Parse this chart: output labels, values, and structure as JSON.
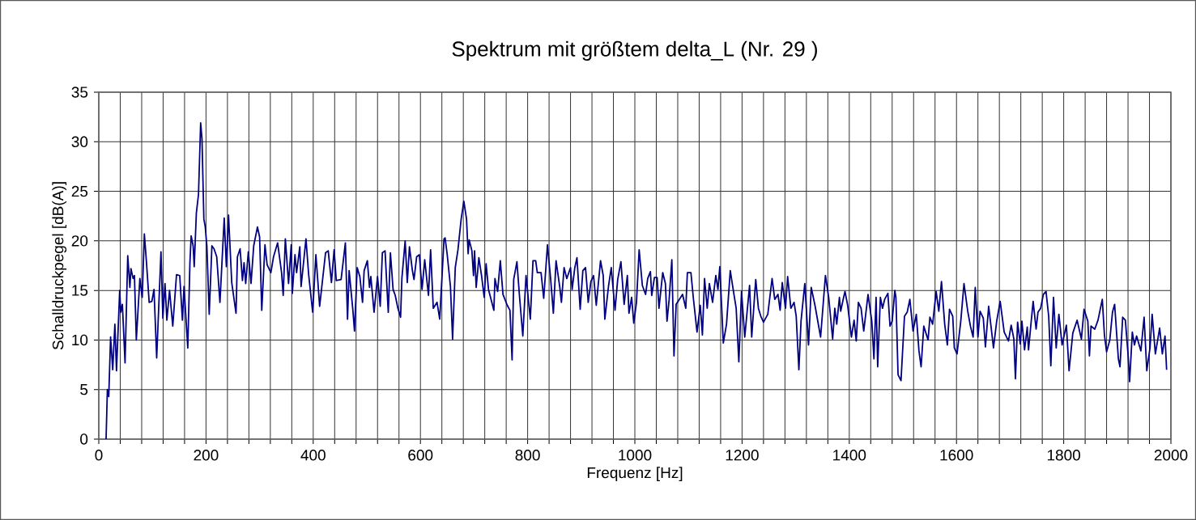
{
  "chart_data": {
    "type": "line",
    "title": "Spektrum mit größtem delta_L (Nr. 29 )",
    "xlabel": "Frequenz [Hz]",
    "ylabel": "Schalldruckpegel [dB(A)]",
    "grid": true,
    "color": "#000080",
    "line_style": "solid",
    "xlim": [
      0,
      2000
    ],
    "ylim": [
      0,
      35
    ],
    "yticks": [
      0,
      5,
      10,
      15,
      20,
      25,
      30,
      35
    ],
    "xticks": [
      0,
      {
        "value": 40,
        "label": null
      },
      {
        "value": 80,
        "label": null
      },
      {
        "value": 120,
        "label": null
      },
      {
        "value": 160,
        "label": null
      },
      200,
      {
        "value": 240,
        "label": null
      },
      {
        "value": 280,
        "label": null
      },
      {
        "value": 320,
        "label": null
      },
      {
        "value": 360,
        "label": null
      },
      400,
      {
        "value": 440,
        "label": null
      },
      {
        "value": 480,
        "label": null
      },
      {
        "value": 520,
        "label": null
      },
      {
        "value": 560,
        "label": null
      },
      600,
      {
        "value": 640,
        "label": null
      },
      {
        "value": 680,
        "label": null
      },
      {
        "value": 720,
        "label": null
      },
      {
        "value": 760,
        "label": null
      },
      800,
      {
        "value": 840,
        "label": null
      },
      {
        "value": 880,
        "label": null
      },
      {
        "value": 920,
        "label": null
      },
      {
        "value": 960,
        "label": null
      },
      1000,
      {
        "value": 1040,
        "label": null
      },
      {
        "value": 1080,
        "label": null
      },
      {
        "value": 1120,
        "label": null
      },
      {
        "value": 1160,
        "label": null
      },
      1200,
      {
        "value": 1240,
        "label": null
      },
      {
        "value": 1280,
        "label": null
      },
      {
        "value": 1320,
        "label": null
      },
      {
        "value": 1360,
        "label": null
      },
      1400,
      {
        "value": 1440,
        "label": null
      },
      {
        "value": 1480,
        "label": null
      },
      {
        "value": 1520,
        "label": null
      },
      {
        "value": 1560,
        "label": null
      },
      1600,
      {
        "value": 1640,
        "label": null
      },
      {
        "value": 1680,
        "label": null
      },
      {
        "value": 1720,
        "label": null
      },
      {
        "value": 1760,
        "label": null
      },
      1800,
      {
        "value": 1840,
        "label": null
      },
      {
        "value": 1880,
        "label": null
      },
      {
        "value": 1920,
        "label": null
      },
      {
        "value": 1960,
        "label": null
      },
      2000
    ],
    "x": [
      13.6,
      16,
      18.6,
      22,
      26,
      30,
      33,
      39,
      41,
      44,
      49,
      54,
      58,
      60,
      64,
      66.5,
      70,
      76.6,
      81,
      85,
      89,
      94,
      99,
      103,
      108,
      116,
      119.5,
      123.5,
      127,
      132,
      138,
      145,
      151,
      156,
      159,
      166,
      170,
      172.3,
      176,
      178,
      182,
      186,
      190,
      192.5,
      196,
      198.6,
      201.6,
      206,
      211,
      215,
      220,
      226,
      234,
      238,
      242,
      248,
      256,
      258.6,
      263.6,
      268,
      271,
      274,
      279,
      284,
      289,
      296,
      300,
      304,
      310,
      314,
      321,
      326,
      333.6,
      341,
      344,
      348,
      354,
      359,
      361,
      366,
      369,
      375,
      377.4,
      386.5,
      391.5,
      399,
      405,
      412,
      423,
      428,
      434,
      439,
      443,
      452,
      460,
      464,
      467,
      474,
      477,
      482,
      487,
      492,
      495,
      501,
      505,
      507.5,
      513.5,
      520,
      525,
      529,
      534,
      540,
      544,
      549,
      553,
      558,
      563,
      565.4,
      571.5,
      575.5,
      579.5,
      585,
      588,
      593,
      598,
      603,
      608,
      615,
      619,
      624,
      631,
      636,
      644,
      646,
      650,
      656,
      660,
      665,
      670,
      676,
      681,
      686,
      689,
      691,
      696,
      699,
      701,
      704,
      709,
      714,
      719,
      722.5,
      727,
      737,
      739,
      744,
      749,
      754,
      762,
      767,
      771,
      774,
      780,
      785,
      791,
      797,
      805,
      810,
      815,
      818,
      825,
      830,
      837,
      843,
      848,
      853,
      860,
      863,
      868,
      873,
      880,
      883,
      888,
      892,
      898,
      903,
      908,
      913,
      918,
      923,
      928,
      936,
      941,
      944,
      951,
      956,
      963,
      968,
      974,
      980,
      986,
      989,
      994,
      998,
      1003,
      1008,
      1014,
      1020,
      1024,
      1029,
      1031.5,
      1036.5,
      1041.5,
      1045,
      1052,
      1057,
      1060,
      1064,
      1069,
      1073,
      1077,
      1083,
      1089,
      1095,
      1098,
      1104.6,
      1109,
      1116,
      1122,
      1126,
      1130,
      1135,
      1139,
      1145,
      1151,
      1155,
      1158.5,
      1165,
      1171,
      1178,
      1184,
      1189,
      1194,
      1199,
      1205,
      1214,
      1218,
      1225.5,
      1230.5,
      1235,
      1240,
      1248,
      1256,
      1261,
      1267,
      1271,
      1275,
      1281,
      1285,
      1291,
      1297,
      1301,
      1306,
      1310,
      1317,
      1324,
      1329,
      1336,
      1346.5,
      1355.5,
      1361.6,
      1369,
      1373,
      1376.6,
      1381.6,
      1384,
      1389,
      1392,
      1397,
      1404,
      1409,
      1413,
      1417,
      1422,
      1427,
      1435,
      1442,
      1446,
      1450,
      1453,
      1458,
      1462,
      1466,
      1472,
      1476,
      1480,
      1485,
      1487,
      1491,
      1496.5,
      1503,
      1508,
      1513,
      1519,
      1525,
      1530,
      1534,
      1539,
      1547,
      1550.4,
      1555.5,
      1562,
      1567,
      1572,
      1578,
      1583,
      1587,
      1593,
      1596,
      1601,
      1608,
      1614,
      1621,
      1626,
      1631,
      1635,
      1640,
      1644,
      1650,
      1654,
      1660,
      1665,
      1669,
      1675,
      1681.5,
      1689,
      1697,
      1702,
      1707,
      1710,
      1714,
      1719,
      1722,
      1727,
      1732,
      1734.4,
      1738,
      1743,
      1748.5,
      1752,
      1757,
      1762,
      1767,
      1772,
      1776,
      1781,
      1786,
      1791,
      1797,
      1805,
      1810,
      1817,
      1825,
      1833,
      1838,
      1845,
      1848,
      1851,
      1858,
      1864,
      1872,
      1876,
      1880,
      1886,
      1891,
      1895,
      1902,
      1905,
      1910,
      1915,
      1920,
      1923,
      1928,
      1932,
      1936,
      1944,
      1950,
      1955,
      1961,
      1965,
      1971,
      1979,
      1984,
      1989,
      1992
    ],
    "values": [
      0,
      5,
      4.3,
      10.3,
      7,
      11.6,
      6.9,
      15,
      12.8,
      13.6,
      7.7,
      18.5,
      15.3,
      17.2,
      16.2,
      16.5,
      10,
      16.2,
      14.3,
      20.7,
      17.8,
      13.8,
      13.9,
      15.1,
      8.2,
      18.9,
      12.2,
      15.7,
      12,
      15,
      11.4,
      16.6,
      16.5,
      12,
      15.4,
      9.2,
      17.8,
      20.5,
      19.5,
      17.4,
      22.8,
      24.7,
      31.9,
      30.3,
      22.2,
      21.4,
      19.5,
      12.6,
      19.5,
      19.2,
      18.4,
      13.8,
      22.3,
      17.4,
      22.6,
      15.8,
      12.7,
      18.4,
      19.2,
      16,
      17.8,
      15.7,
      18.9,
      15.7,
      19.5,
      21.4,
      20.4,
      13,
      19.6,
      17.6,
      16.8,
      18.4,
      19.8,
      16.8,
      14.5,
      20.2,
      15.7,
      19.6,
      14.7,
      18.6,
      16.8,
      19.4,
      15.4,
      20.2,
      16.6,
      12.8,
      18.6,
      13.4,
      18.8,
      19,
      15.8,
      19.1,
      16,
      16.1,
      19.8,
      12.1,
      17,
      13,
      10.9,
      17.3,
      16.4,
      13.8,
      17,
      18,
      15.3,
      16.4,
      12.8,
      16.4,
      13.4,
      18.8,
      19,
      12.8,
      18.8,
      15.1,
      14.5,
      13.2,
      12.3,
      16.2,
      20,
      15.8,
      19.4,
      17,
      16.1,
      18.4,
      18.6,
      15.1,
      18.1,
      14.5,
      19.1,
      13.2,
      13.8,
      12.1,
      20.2,
      20.3,
      18.6,
      15.4,
      10.1,
      17.3,
      19.1,
      22.2,
      24,
      22.2,
      18.7,
      20.1,
      19,
      16.5,
      19,
      15.3,
      18.3,
      16.5,
      14.3,
      17.7,
      15.1,
      13,
      16.2,
      14.9,
      18,
      14.6,
      13.5,
      13,
      8,
      16.1,
      17.9,
      14.3,
      10.4,
      16.5,
      12.1,
      18,
      18,
      16.8,
      16.8,
      14.2,
      19.6,
      16.1,
      12.7,
      18,
      15.3,
      13.8,
      17.3,
      16.2,
      17.3,
      15.1,
      17.3,
      18.3,
      13.1,
      17,
      17.3,
      13.8,
      15.9,
      16.5,
      13.5,
      18,
      16.5,
      12.1,
      15.5,
      17.3,
      13,
      16.1,
      17.9,
      13.6,
      16.5,
      12.7,
      14.3,
      11.7,
      13.8,
      19.1,
      15.5,
      14.6,
      16.2,
      16.9,
      14.5,
      16.3,
      16.3,
      13.2,
      16.8,
      15.7,
      11.9,
      14.1,
      18.1,
      8.4,
      13.6,
      14.1,
      14.6,
      13.2,
      16.8,
      16.8,
      14.3,
      10.8,
      13.5,
      10.5,
      16.2,
      13.2,
      15.7,
      13.8,
      16.5,
      15.1,
      17.4,
      9.7,
      11.6,
      17,
      14.9,
      13.2,
      7.8,
      14.9,
      10.3,
      15.5,
      10.3,
      16.1,
      13.2,
      12.4,
      11.8,
      12.6,
      16.2,
      14.1,
      14.6,
      13,
      15.8,
      13.2,
      16.4,
      13.2,
      13.8,
      12.4,
      7,
      11.9,
      15.7,
      9.5,
      15.3,
      13.5,
      10.3,
      16.5,
      14.3,
      10.1,
      13.2,
      11.6,
      14.3,
      12.9,
      14.2,
      14.9,
      13.5,
      10.3,
      12,
      9.9,
      13.8,
      13.2,
      10.9,
      14.6,
      11.9,
      8.1,
      14.3,
      7.3,
      14.3,
      13.2,
      14.1,
      14.7,
      11.4,
      11.9,
      15,
      14.3,
      6.5,
      5.9,
      12.4,
      12.8,
      14.1,
      10.9,
      12.6,
      8.9,
      7.3,
      11.4,
      10,
      12.3,
      11.6,
      14.9,
      12.9,
      15.9,
      11.6,
      9.5,
      13.1,
      12.4,
      9.2,
      8.6,
      11.9,
      15.7,
      12.9,
      11.4,
      10.3,
      15.3,
      10.3,
      12.9,
      12.2,
      9.3,
      13.4,
      11.1,
      9.2,
      11.9,
      13.9,
      10.8,
      9.9,
      11.5,
      10.1,
      6.1,
      11.8,
      9.6,
      11.9,
      9,
      11.3,
      9,
      11.1,
      13.9,
      11.1,
      12.8,
      13.2,
      14.6,
      14.9,
      12.4,
      7.4,
      14.3,
      9.2,
      12.6,
      9.5,
      11.5,
      6.9,
      10.7,
      12,
      10.1,
      13.1,
      11.9,
      8.4,
      11.4,
      11.1,
      12,
      14.1,
      10.5,
      8.8,
      10,
      12.8,
      13.6,
      8.1,
      7.3,
      12.3,
      12,
      8.6,
      5.8,
      10.8,
      9.5,
      10.4,
      8.9,
      12.3,
      6.9,
      9.2,
      12.6,
      8.6,
      11.2,
      8.6,
      10.4,
      7
    ]
  }
}
